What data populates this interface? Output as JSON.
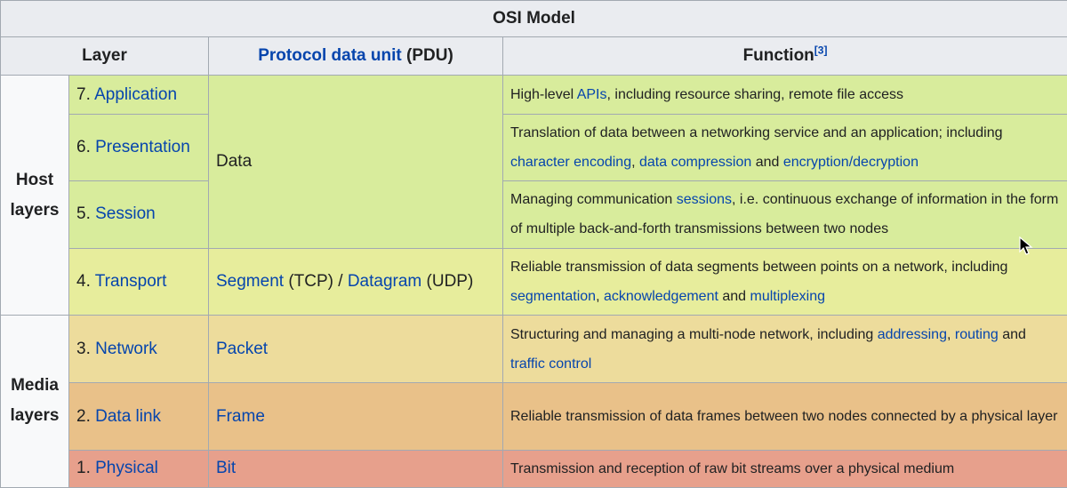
{
  "title": "OSI Model",
  "headers": {
    "layer": "Layer",
    "pdu_link": "Protocol data unit",
    "pdu_suffix": " (PDU)",
    "function": "Function",
    "function_ref": "[3]"
  },
  "groups": {
    "host_line1": "Host",
    "host_line2": "layers",
    "media_line1": "Media",
    "media_line2": "layers"
  },
  "layers": {
    "l7": {
      "num": "7. ",
      "name": "Application",
      "f": [
        "High-level ",
        "APIs",
        ", including resource sharing, remote file access"
      ]
    },
    "l6": {
      "num": "6. ",
      "name": "Presentation",
      "f": [
        "Translation of data between a networking service and an application; including ",
        "character encoding",
        ", ",
        "data compression",
        " and ",
        "encryption/decryption"
      ]
    },
    "l5": {
      "num": "5. ",
      "name": "Session",
      "f": [
        "Managing communication ",
        "sessions",
        ", i.e. continuous exchange of information in the form of multiple back-and-forth transmissions between two nodes"
      ]
    },
    "l4": {
      "num": "4. ",
      "name": "Transport",
      "pdu": [
        "Segment",
        " (TCP) / ",
        "Datagram",
        " (UDP)"
      ],
      "f": [
        "Reliable transmission of data segments between points on a network, including ",
        "segmentation",
        ", ",
        "acknowledgement",
        " and ",
        "multiplexing"
      ]
    },
    "l3": {
      "num": "3. ",
      "name": "Network",
      "pdu": "Packet",
      "f": [
        "Structuring and managing a multi-node network, including ",
        "addressing",
        ", ",
        "routing",
        " and ",
        "traffic control"
      ]
    },
    "l2": {
      "num": "2. ",
      "name": "Data link",
      "pdu": "Frame",
      "f": [
        "Reliable transmission of data frames between two nodes connected by a physical layer"
      ]
    },
    "l1": {
      "num": "1. ",
      "name": "Physical",
      "pdu": "Bit",
      "f": [
        "Transmission and reception of raw bit streams over a physical medium"
      ]
    }
  },
  "data_pdu": "Data",
  "colors": {
    "application_session": "#d8ec9c",
    "transport": "#e7ed9c",
    "network": "#eddc9c",
    "data_link": "#e9c189",
    "physical": "#e7a08c",
    "link": "#0645ad"
  }
}
